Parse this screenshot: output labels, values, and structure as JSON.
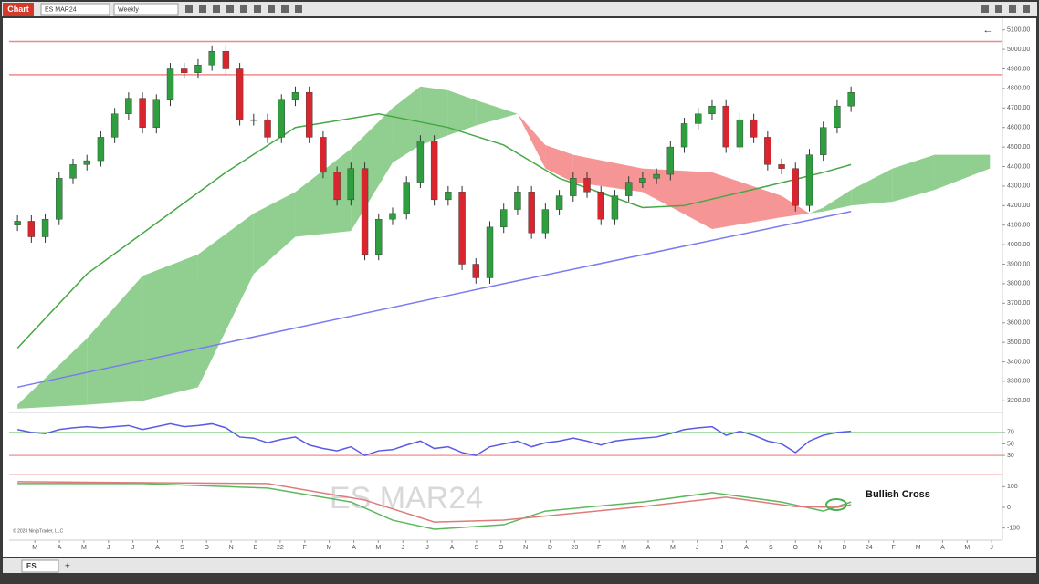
{
  "toolbar": {
    "chart_button": "Chart",
    "instrument": "ES MAR24",
    "interval": "Weekly"
  },
  "tabs": [
    "ES"
  ],
  "chart_data": [
    {
      "type": "candlestick",
      "open": [
        4100,
        4120,
        4040,
        4130,
        4340,
        4410,
        4430,
        4550,
        4670,
        4750,
        4600,
        4740,
        4900,
        4880,
        4920,
        4990,
        4900,
        4640,
        4640,
        4550,
        4740,
        4780,
        4550,
        4370,
        4230,
        4390,
        3950,
        4130,
        4160,
        4320,
        4530,
        4230,
        4270,
        3900,
        3830,
        4090,
        4180,
        4270,
        4060,
        4180,
        4250,
        4340,
        4270,
        4130,
        4250,
        4320,
        4340,
        4360,
        4500,
        4620,
        4670,
        4710,
        4500,
        4640,
        4550,
        4410,
        4390,
        4200,
        4460,
        4600,
        4710
      ],
      "high": [
        4150,
        4150,
        4160,
        4370,
        4440,
        4460,
        4580,
        4700,
        4780,
        4780,
        4770,
        4930,
        4930,
        4950,
        5020,
        5020,
        4930,
        4670,
        4670,
        4770,
        4810,
        4810,
        4580,
        4400,
        4420,
        4420,
        4160,
        4190,
        4350,
        4560,
        4560,
        4300,
        4300,
        3930,
        4120,
        4210,
        4300,
        4300,
        4210,
        4280,
        4370,
        4370,
        4300,
        4280,
        4350,
        4370,
        4390,
        4530,
        4650,
        4700,
        4740,
        4740,
        4670,
        4670,
        4580,
        4440,
        4420,
        4490,
        4630,
        4740,
        4810
      ],
      "low": [
        4070,
        4010,
        4010,
        4100,
        4310,
        4380,
        4400,
        4520,
        4640,
        4570,
        4570,
        4710,
        4850,
        4850,
        4890,
        4870,
        4610,
        4610,
        4520,
        4520,
        4710,
        4520,
        4340,
        4200,
        4200,
        3920,
        3920,
        4100,
        4130,
        4290,
        4200,
        4200,
        3870,
        3800,
        3800,
        4060,
        4150,
        4030,
        4030,
        4150,
        4220,
        4240,
        4100,
        4100,
        4220,
        4290,
        4310,
        4330,
        4470,
        4590,
        4640,
        4470,
        4470,
        4520,
        4380,
        4360,
        4170,
        4170,
        4430,
        4570,
        4680
      ],
      "close": [
        4120,
        4040,
        4130,
        4340,
        4410,
        4430,
        4550,
        4670,
        4750,
        4600,
        4740,
        4900,
        4880,
        4920,
        4990,
        4900,
        4640,
        4640,
        4550,
        4740,
        4780,
        4550,
        4370,
        4230,
        4390,
        3950,
        4130,
        4160,
        4320,
        4530,
        4230,
        4270,
        3900,
        3830,
        4090,
        4180,
        4270,
        4060,
        4180,
        4250,
        4340,
        4270,
        4130,
        4250,
        4320,
        4340,
        4360,
        4500,
        4620,
        4670,
        4710,
        4500,
        4640,
        4550,
        4410,
        4390,
        4200,
        4460,
        4600,
        4710,
        4780
      ],
      "up_color": "#2e9e3e",
      "down_color": "#d9262e",
      "xlim": [
        -0.6,
        70.9
      ],
      "ylim": [
        3150,
        5150
      ],
      "yticks": [
        {
          "value": 3200,
          "label": "3200.00"
        },
        {
          "value": 3300,
          "label": "3300.00"
        },
        {
          "value": 3400,
          "label": "3400.00"
        },
        {
          "value": 3500,
          "label": "3500.00"
        },
        {
          "value": 3600,
          "label": "3600.00"
        },
        {
          "value": 3700,
          "label": "3700.00"
        },
        {
          "value": 3800,
          "label": "3800.00"
        },
        {
          "value": 3900,
          "label": "3900.00"
        },
        {
          "value": 4000,
          "label": "4000.00"
        },
        {
          "value": 4100,
          "label": "4100.00"
        },
        {
          "value": 4200,
          "label": "4200.00"
        },
        {
          "value": 4300,
          "label": "4300.00"
        },
        {
          "value": 4400,
          "label": "4400.00"
        },
        {
          "value": 4500,
          "label": "4500.00"
        },
        {
          "value": 4600,
          "label": "4600.00"
        },
        {
          "value": 4700,
          "label": "4700.00"
        },
        {
          "value": 4800,
          "label": "4800.00"
        },
        {
          "value": 4900,
          "label": "4900.00"
        },
        {
          "value": 5000,
          "label": "5000.00"
        },
        {
          "value": 5100,
          "label": "5100.00"
        }
      ],
      "levels": [
        {
          "value": 5040,
          "color": "#f08a8a"
        },
        {
          "value": 4870,
          "color": "#f08a8a"
        }
      ],
      "lines": [
        {
          "color": "#7b7bf0",
          "x": [
            0,
            35,
            60
          ],
          "values": [
            3270,
            3800,
            4170
          ]
        },
        {
          "color": "#45a845",
          "x": [
            0,
            5,
            15,
            20,
            26,
            31,
            35,
            39,
            45,
            48,
            54,
            58,
            60
          ],
          "values": [
            3470,
            3850,
            4370,
            4600,
            4670,
            4600,
            4510,
            4340,
            4190,
            4200,
            4300,
            4370,
            4410
          ]
        }
      ],
      "cloud": {
        "x": [
          0,
          5,
          9,
          13,
          17,
          20,
          24,
          27,
          29,
          31,
          33,
          36,
          38,
          40,
          45,
          50,
          55,
          57,
          58,
          60,
          63,
          66,
          70
        ],
        "span_a": [
          3180,
          3520,
          3840,
          3950,
          4160,
          4270,
          4490,
          4700,
          4810,
          4790,
          4740,
          4670,
          4390,
          4320,
          4270,
          4080,
          4140,
          4160,
          4190,
          4280,
          4390,
          4460,
          4460
        ],
        "span_b": [
          3160,
          3180,
          3200,
          3270,
          3850,
          4040,
          4070,
          4420,
          4510,
          4560,
          4610,
          4670,
          4510,
          4460,
          4390,
          4370,
          4250,
          4160,
          4170,
          4200,
          4220,
          4280,
          4390
        ],
        "up_color": "#6cbf6c",
        "down_color": "#f27171"
      }
    },
    {
      "type": "line",
      "color": "#5a5ae6",
      "xlim": [
        -0.6,
        70.9
      ],
      "ylim": [
        0,
        100
      ],
      "yticks": [
        30,
        50,
        70
      ],
      "levels": [
        {
          "value": 70,
          "color": "#9bd89b"
        },
        {
          "value": 30,
          "color": "#f0a0a0"
        }
      ],
      "values": [
        75,
        70,
        68,
        75,
        78,
        80,
        78,
        80,
        82,
        75,
        80,
        85,
        80,
        82,
        85,
        78,
        62,
        60,
        52,
        58,
        62,
        48,
        42,
        38,
        45,
        30,
        38,
        40,
        48,
        55,
        42,
        45,
        35,
        30,
        45,
        50,
        55,
        45,
        52,
        55,
        60,
        55,
        48,
        55,
        58,
        60,
        62,
        68,
        75,
        78,
        80,
        65,
        72,
        65,
        55,
        50,
        35,
        55,
        65,
        70,
        72
      ]
    },
    {
      "type": "line",
      "xlim": [
        -0.6,
        70.9
      ],
      "ylim": [
        -150,
        150
      ],
      "yticks": [
        -100,
        0,
        100
      ],
      "series": [
        {
          "color": "#5cb85c",
          "x": [
            0,
            9,
            18,
            24,
            27,
            30,
            35,
            38,
            45,
            50,
            55,
            58,
            60
          ],
          "values": [
            115,
            115,
            93,
            26,
            -62,
            -106,
            -84,
            -18,
            26,
            71,
            26,
            -18,
            26
          ]
        },
        {
          "color": "#e07a7a",
          "x": [
            0,
            18,
            25,
            30,
            35,
            45,
            51,
            56,
            59,
            60
          ],
          "values": [
            124,
            115,
            35,
            -71,
            -62,
            4,
            49,
            4,
            0,
            13
          ]
        }
      ],
      "xticks": [
        {
          "value": 1.25,
          "label": "M"
        },
        {
          "value": 3.02,
          "label": "A"
        },
        {
          "value": 4.78,
          "label": "M"
        },
        {
          "value": 6.55,
          "label": "J"
        },
        {
          "value": 8.31,
          "label": "J"
        },
        {
          "value": 10.08,
          "label": "A"
        },
        {
          "value": 11.85,
          "label": "S"
        },
        {
          "value": 13.61,
          "label": "O"
        },
        {
          "value": 15.38,
          "label": "N"
        },
        {
          "value": 17.14,
          "label": "D"
        },
        {
          "value": 18.91,
          "label": "22"
        },
        {
          "value": 20.68,
          "label": "F"
        },
        {
          "value": 22.44,
          "label": "M"
        },
        {
          "value": 24.21,
          "label": "A"
        },
        {
          "value": 25.97,
          "label": "M"
        },
        {
          "value": 27.74,
          "label": "J"
        },
        {
          "value": 29.51,
          "label": "J"
        },
        {
          "value": 31.27,
          "label": "A"
        },
        {
          "value": 33.04,
          "label": "S"
        },
        {
          "value": 34.8,
          "label": "O"
        },
        {
          "value": 36.57,
          "label": "N"
        },
        {
          "value": 38.34,
          "label": "D"
        },
        {
          "value": 40.1,
          "label": "23"
        },
        {
          "value": 41.87,
          "label": "F"
        },
        {
          "value": 43.63,
          "label": "M"
        },
        {
          "value": 45.4,
          "label": "A"
        },
        {
          "value": 47.17,
          "label": "M"
        },
        {
          "value": 48.93,
          "label": "J"
        },
        {
          "value": 50.7,
          "label": "J"
        },
        {
          "value": 52.46,
          "label": "A"
        },
        {
          "value": 54.23,
          "label": "S"
        },
        {
          "value": 56.0,
          "label": "O"
        },
        {
          "value": 57.76,
          "label": "N"
        },
        {
          "value": 59.53,
          "label": "D"
        },
        {
          "value": 61.29,
          "label": "24"
        },
        {
          "value": 63.06,
          "label": "F"
        },
        {
          "value": 64.83,
          "label": "M"
        },
        {
          "value": 66.59,
          "label": "A"
        },
        {
          "value": 68.36,
          "label": "M"
        },
        {
          "value": 70.12,
          "label": "J"
        }
      ],
      "watermark": "ES MAR24",
      "annotation": "Bullish Cross",
      "copyright": "© 2023 NinjaTrader, LLC"
    }
  ]
}
